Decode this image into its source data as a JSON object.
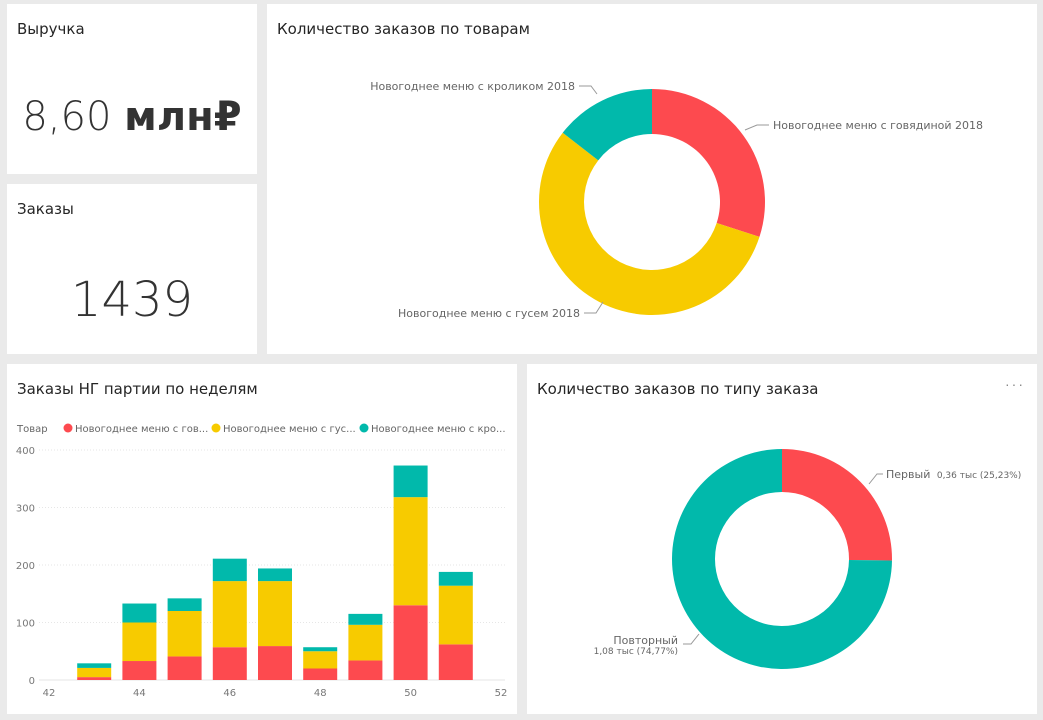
{
  "revenue_card": {
    "title": "Выручка",
    "value": "8,60",
    "unit": "млн₽"
  },
  "orders_card": {
    "title": "Заказы",
    "value": "1439"
  },
  "products_donut": {
    "title": "Количество заказов по товарам",
    "labels": {
      "beef": "Новогоднее меню с говядиной 2018",
      "rabbit": "Новогоднее меню с кроликом 2018",
      "goose": "Новогоднее меню с гусем 2018"
    }
  },
  "type_donut": {
    "title": "Количество заказов по типу заказа",
    "more": "···",
    "first_name": "Первый",
    "first_value": "0,36 тыс (25,23%)",
    "repeat_name": "Повторный",
    "repeat_value": "1,08 тыс (74,77%)"
  },
  "weekly_chart": {
    "title": "Заказы НГ партии по неделям",
    "legend_title": "Товар",
    "legend": [
      "Новогоднее меню с гов...",
      "Новогоднее меню с гус...",
      "Новогоднее меню с кро..."
    ]
  },
  "colors": {
    "red": "#fd4a4f",
    "yellow": "#f7cb00",
    "teal": "#01b9ab"
  },
  "chart_data": [
    {
      "type": "pie",
      "title": "Количество заказов по товарам",
      "categories": [
        "Новогоднее меню с говядиной 2018",
        "Новогоднее меню с гусем 2018",
        "Новогоднее меню с кроликом 2018"
      ],
      "values": [
        0.3,
        0.555,
        0.145
      ]
    },
    {
      "type": "pie",
      "title": "Количество заказов по типу заказа",
      "categories": [
        "Первый",
        "Повторный"
      ],
      "values": [
        0.2523,
        0.7477
      ]
    },
    {
      "type": "bar",
      "title": "Заказы НГ партии по неделям",
      "x": [
        43,
        44,
        45,
        46,
        47,
        48,
        49,
        50,
        51
      ],
      "xticks": [
        42,
        44,
        46,
        48,
        50,
        52
      ],
      "yticks": [
        0,
        100,
        200,
        300,
        400
      ],
      "ylim": [
        0,
        400
      ],
      "xlim": [
        42,
        52
      ],
      "series": [
        {
          "name": "Новогоднее меню с гов...",
          "values": [
            5,
            33,
            41,
            57,
            59,
            20,
            34,
            130,
            62
          ]
        },
        {
          "name": "Новогоднее меню с гус...",
          "values": [
            16,
            67,
            79,
            115,
            113,
            30,
            62,
            188,
            102
          ]
        },
        {
          "name": "Новогоднее меню с кро...",
          "values": [
            8,
            33,
            22,
            39,
            22,
            7,
            19,
            55,
            24
          ]
        }
      ]
    }
  ]
}
